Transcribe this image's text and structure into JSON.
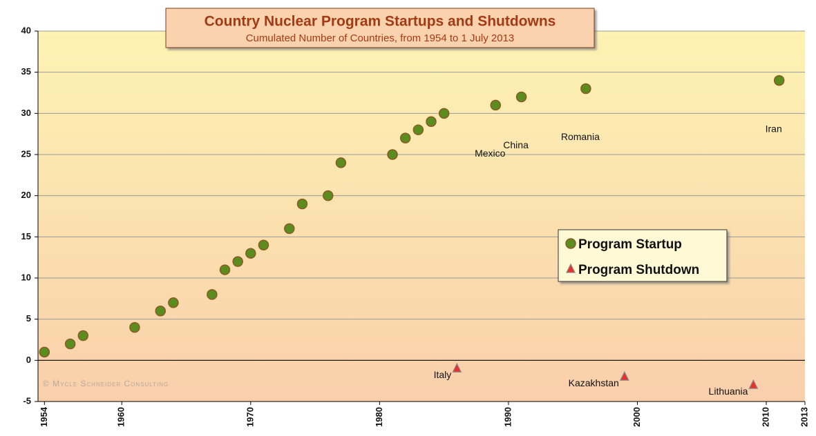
{
  "chart_data": {
    "type": "scatter",
    "title": "Country Nuclear Program Startups and Shutdowns",
    "subtitle": "Cumulated Number of Countries, from 1954 to 1 July 2013",
    "watermark": "© Mycle Schneider Consulting",
    "xlim": [
      1953.5,
      2013
    ],
    "xticks": [
      1954,
      1960,
      1970,
      1980,
      1990,
      2000,
      2010,
      2013
    ],
    "ylim": [
      -5,
      40
    ],
    "yticks": [
      -5,
      0,
      5,
      10,
      15,
      20,
      25,
      30,
      35,
      40
    ],
    "grid": true,
    "legend": "right",
    "series": [
      {
        "name": "Program Startup",
        "color": "#5b8c1e",
        "marker": "circle",
        "x": [
          1954,
          1956,
          1957,
          1961,
          1963,
          1964,
          1967,
          1968,
          1969,
          1970,
          1971,
          1973,
          1974,
          1976,
          1977,
          1981,
          1982,
          1983,
          1984,
          1985,
          1989,
          1991,
          1996,
          2011
        ],
        "values": [
          1,
          2,
          3,
          4,
          6,
          7,
          8,
          11,
          12,
          13,
          14,
          16,
          19,
          20,
          24,
          25,
          27,
          28,
          29,
          30,
          31,
          32,
          33,
          34
        ],
        "labels": [
          null,
          null,
          null,
          null,
          null,
          null,
          null,
          null,
          null,
          null,
          null,
          null,
          null,
          null,
          null,
          null,
          null,
          null,
          null,
          null,
          "Mexico",
          "China",
          "Romania",
          "Iran"
        ]
      },
      {
        "name": "Program Shutdown",
        "color": "#e8312a",
        "marker": "triangle",
        "x": [
          1986,
          1999,
          2009
        ],
        "values": [
          -1,
          -2,
          -3
        ],
        "labels": [
          "Italy",
          "Kazakhstan",
          "Lithuania"
        ]
      }
    ]
  }
}
